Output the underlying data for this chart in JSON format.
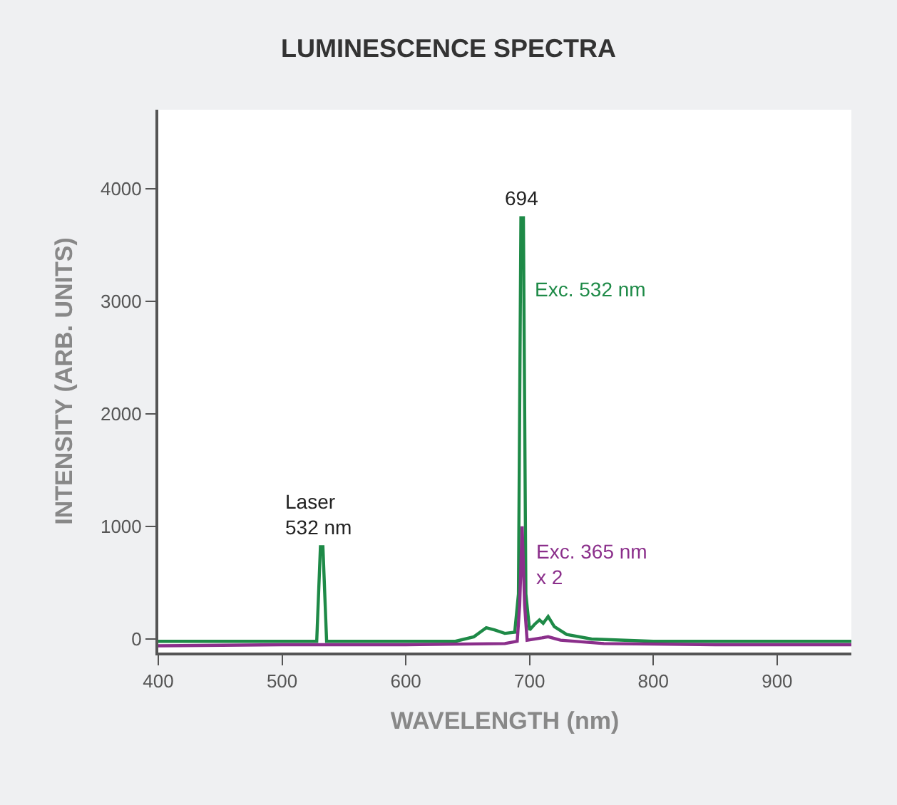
{
  "chart_data": {
    "type": "line",
    "title": "LUMINESCENCE SPECTRA",
    "xlabel": "WAVELENGTH (nm)",
    "ylabel": "INTENSITY (ARB. UNITS)",
    "xlim": [
      400,
      960
    ],
    "ylim": [
      -120,
      4700
    ],
    "xticks": [
      400,
      500,
      600,
      700,
      800,
      900
    ],
    "yticks": [
      0,
      1000,
      2000,
      3000,
      4000
    ],
    "legend": false,
    "marker": "none",
    "line_style": "solid",
    "annotations": [
      {
        "text": "694",
        "x": 694,
        "y": 3740
      },
      {
        "text": "Laser\n532 nm",
        "x": 532,
        "y": 820
      }
    ],
    "series": [
      {
        "name": "Exc. 532 nm",
        "color": "#1e8a47",
        "x": [
          400,
          450,
          500,
          520,
          528,
          531,
          533,
          536,
          580,
          640,
          655,
          660,
          665,
          672,
          680,
          688,
          691,
          693,
          695,
          697,
          700,
          704,
          708,
          711,
          715,
          720,
          730,
          750,
          800,
          850,
          900,
          960
        ],
        "values": [
          -20,
          -20,
          -20,
          -20,
          -20,
          820,
          820,
          -20,
          -20,
          -20,
          20,
          60,
          100,
          80,
          50,
          60,
          400,
          3740,
          3740,
          400,
          80,
          130,
          170,
          140,
          200,
          110,
          40,
          0,
          -20,
          -20,
          -20,
          -20
        ]
      },
      {
        "name": "Exc. 365 nm\nx 2",
        "color": "#8b2f8b",
        "x": [
          400,
          500,
          600,
          680,
          690,
          692,
          694,
          696,
          698,
          710,
          715,
          725,
          760,
          850,
          960
        ],
        "values": [
          -60,
          -50,
          -50,
          -40,
          -20,
          300,
          1000,
          300,
          -10,
          10,
          20,
          -10,
          -40,
          -50,
          -50
        ]
      }
    ]
  }
}
